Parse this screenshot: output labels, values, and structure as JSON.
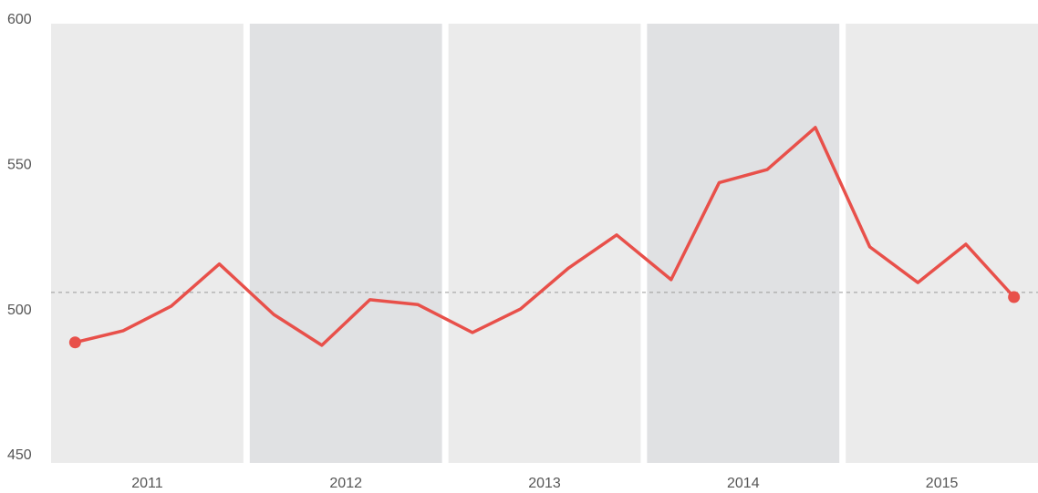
{
  "chart_data": {
    "type": "line",
    "groups": [
      {
        "label": "2011",
        "values": [
          489,
          493,
          501.5,
          516
        ]
      },
      {
        "label": "2012",
        "values": [
          498.6,
          488,
          503.7,
          502
        ]
      },
      {
        "label": "2013",
        "values": [
          492.4,
          500.5,
          514.6,
          526
        ]
      },
      {
        "label": "2014",
        "values": [
          510.6,
          544,
          548.5,
          563
        ]
      },
      {
        "label": "2015",
        "values": [
          521.9,
          509.6,
          522.8,
          504.6
        ]
      }
    ],
    "color": "#e8504a",
    "band_colors": [
      "#ebebeb",
      "#e0e1e3"
    ],
    "reference": 506.2,
    "ylim": [
      450,
      600
    ],
    "yticks": [
      450,
      500,
      550,
      600
    ]
  }
}
